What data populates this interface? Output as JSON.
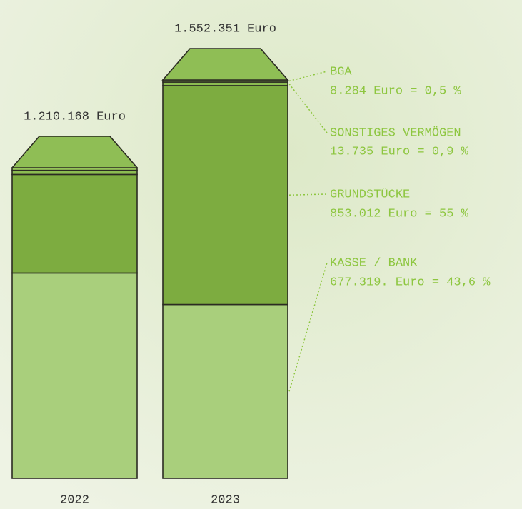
{
  "chart_data": {
    "type": "stacked_bar",
    "categories": [
      "2022",
      "2023"
    ],
    "totals": [
      1210168,
      1552351
    ],
    "total_labels": [
      "1.210.168 Euro",
      "1.552.351 Euro"
    ],
    "series": [
      {
        "name": "KASSE / BANK",
        "color": "#a9cf7c",
        "values": [
          800000,
          677319
        ],
        "value_labels": [
          null,
          "677.319. Euro = 43,6 %"
        ]
      },
      {
        "name": "GRUNDSTÜCKE",
        "color": "#7dac40",
        "values": [
          384000,
          853012
        ],
        "value_labels": [
          null,
          "853.012 Euro = 55 %"
        ]
      },
      {
        "name": "SONSTIGES VERMÖGEN",
        "color": "#8cbc52",
        "values": [
          16000,
          13735
        ],
        "value_labels": [
          null,
          "13.735 Euro = 0,9 %"
        ]
      },
      {
        "name": "BGA",
        "color": "#95c35a",
        "values": [
          10000,
          8284
        ],
        "value_labels": [
          null,
          "8.284 Euro = 0,5 %"
        ]
      }
    ]
  }
}
